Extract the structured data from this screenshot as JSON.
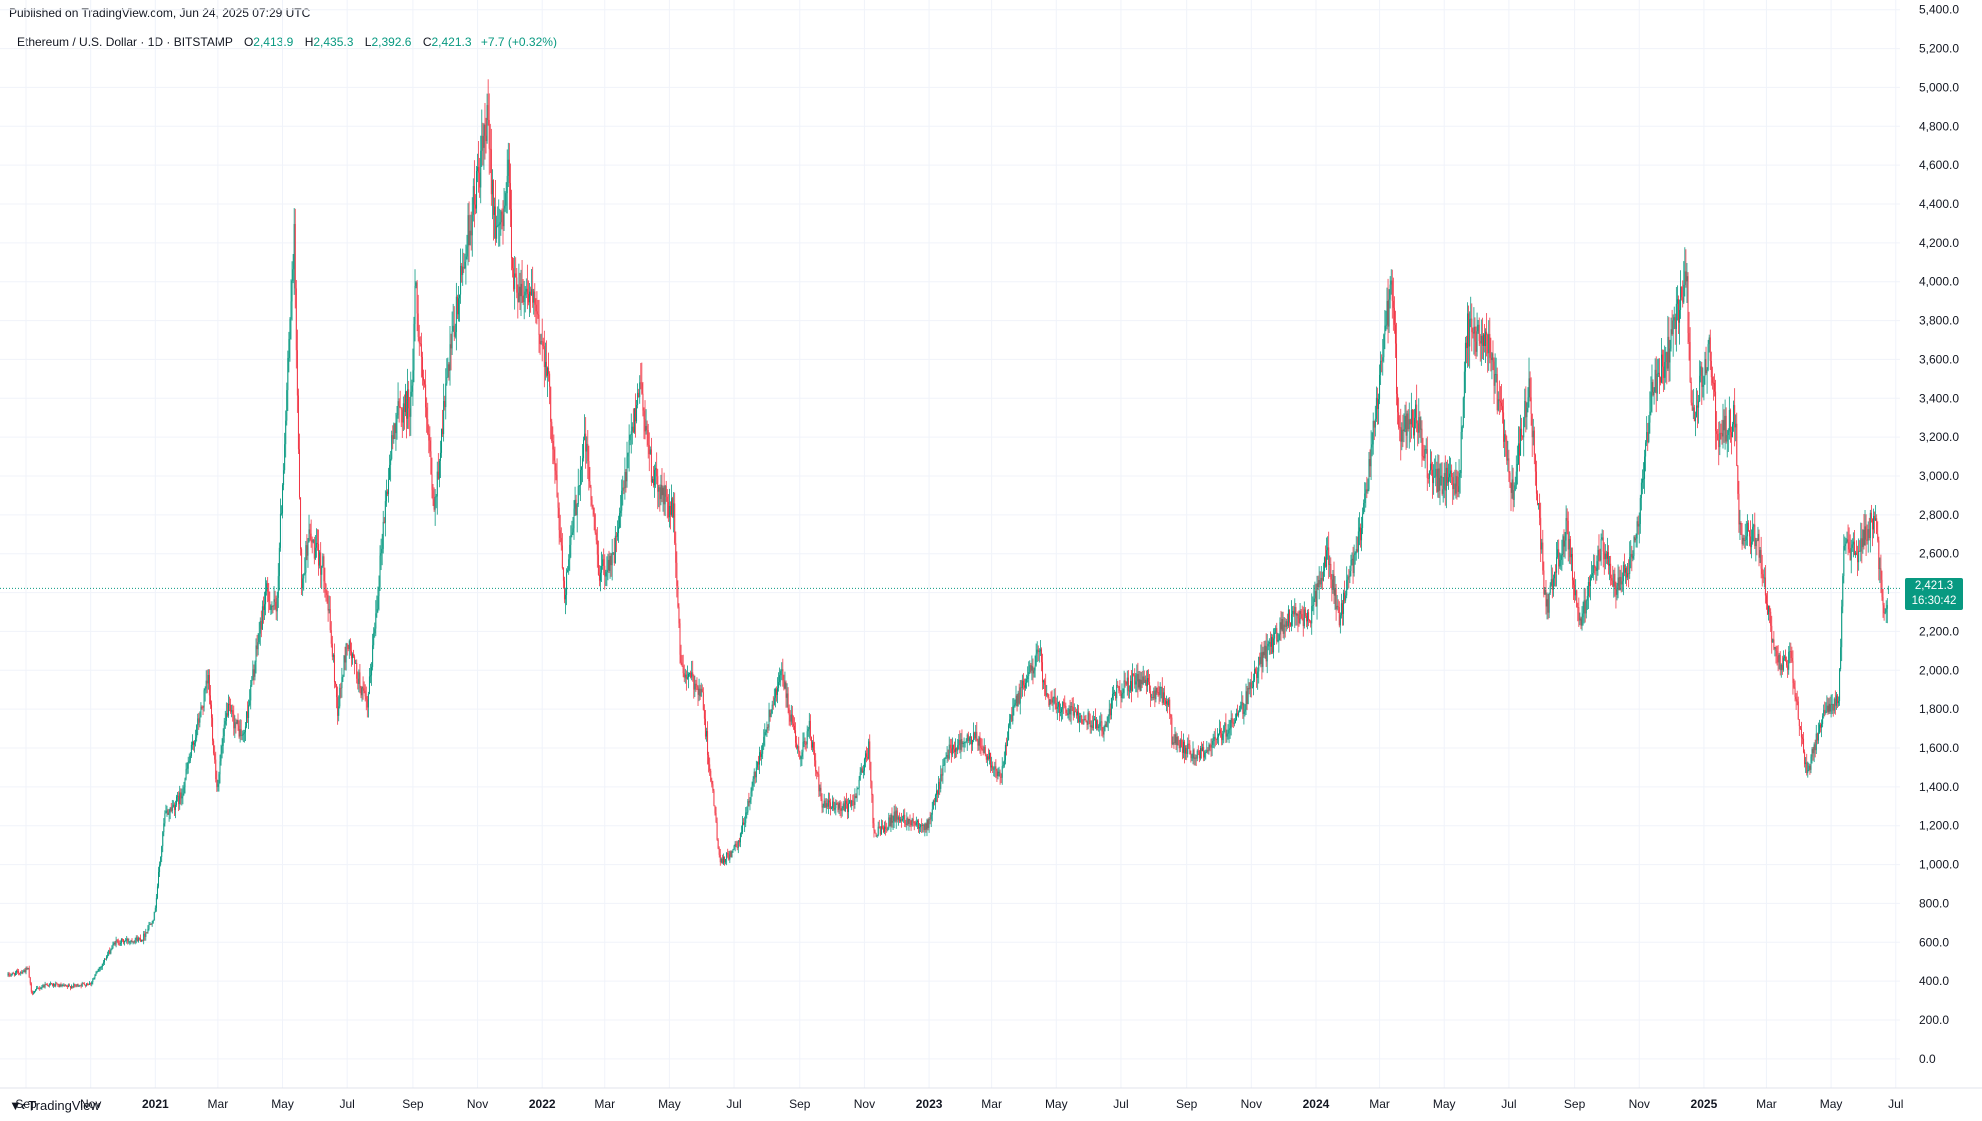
{
  "header": {
    "published": "Published on TradingView.com, Jun 24, 2025 07:29 UTC"
  },
  "legend": {
    "symbol": "Ethereum / U.S. Dollar · 1D · BITSTAMP",
    "o_label": "O",
    "o_value": "2,413.9",
    "h_label": "H",
    "h_value": "2,435.3",
    "l_label": "L",
    "l_value": "2,392.6",
    "c_label": "C",
    "c_value": "2,421.3",
    "change": "+7.7 (+0.32%)"
  },
  "price_tag": {
    "price": "2,421.3",
    "countdown": "16:30:42"
  },
  "footer": {
    "brand": "TradingView",
    "logo": "tradingview-logo-icon"
  },
  "colors": {
    "up": "#089981",
    "down": "#f23645",
    "grid": "#f0f3fa",
    "last_line": "#089981"
  },
  "chart_data": {
    "type": "candlestick",
    "symbol": "ETHUSD",
    "exchange": "BITSTAMP",
    "interval": "1D",
    "x_range": [
      "2020-08-15",
      "2025-07-05"
    ],
    "ylim": [
      -150,
      5450
    ],
    "y_ticks": [
      0,
      200,
      400,
      600,
      800,
      1000,
      1200,
      1400,
      1600,
      1800,
      2000,
      2200,
      2400,
      2600,
      2800,
      3000,
      3200,
      3400,
      3600,
      3800,
      4000,
      4200,
      4400,
      4600,
      4800,
      5000,
      5200,
      5400
    ],
    "y_tick_labels": [
      "0.0",
      "200.0",
      "400.0",
      "600.0",
      "800.0",
      "1,000.0",
      "1,200.0",
      "1,400.0",
      "1,600.0",
      "1,800.0",
      "2,000.0",
      "2,200.0",
      "2,400.0",
      "2,600.0",
      "2,800.0",
      "3,000.0",
      "3,200.0",
      "3,400.0",
      "3,600.0",
      "3,800.0",
      "4,000.0",
      "4,200.0",
      "4,400.0",
      "4,600.0",
      "4,800.0",
      "5,000.0",
      "5,200.0",
      "5,400.0"
    ],
    "x_ticks": [
      {
        "date": "2020-09-01",
        "label": "Sep"
      },
      {
        "date": "2020-11-01",
        "label": "Nov"
      },
      {
        "date": "2021-01-01",
        "label": "2021",
        "year": true
      },
      {
        "date": "2021-03-01",
        "label": "Mar"
      },
      {
        "date": "2021-05-01",
        "label": "May"
      },
      {
        "date": "2021-07-01",
        "label": "Jul"
      },
      {
        "date": "2021-09-01",
        "label": "Sep"
      },
      {
        "date": "2021-11-01",
        "label": "Nov"
      },
      {
        "date": "2022-01-01",
        "label": "2022",
        "year": true
      },
      {
        "date": "2022-03-01",
        "label": "Mar"
      },
      {
        "date": "2022-05-01",
        "label": "May"
      },
      {
        "date": "2022-07-01",
        "label": "Jul"
      },
      {
        "date": "2022-09-01",
        "label": "Sep"
      },
      {
        "date": "2022-11-01",
        "label": "Nov"
      },
      {
        "date": "2023-01-01",
        "label": "2023",
        "year": true
      },
      {
        "date": "2023-03-01",
        "label": "Mar"
      },
      {
        "date": "2023-05-01",
        "label": "May"
      },
      {
        "date": "2023-07-01",
        "label": "Jul"
      },
      {
        "date": "2023-09-01",
        "label": "Sep"
      },
      {
        "date": "2023-11-01",
        "label": "Nov"
      },
      {
        "date": "2024-01-01",
        "label": "2024",
        "year": true
      },
      {
        "date": "2024-03-01",
        "label": "Mar"
      },
      {
        "date": "2024-05-01",
        "label": "May"
      },
      {
        "date": "2024-07-01",
        "label": "Jul"
      },
      {
        "date": "2024-09-01",
        "label": "Sep"
      },
      {
        "date": "2024-11-01",
        "label": "Nov"
      },
      {
        "date": "2025-01-01",
        "label": "2025",
        "year": true
      },
      {
        "date": "2025-03-01",
        "label": "Mar"
      },
      {
        "date": "2025-05-01",
        "label": "May"
      },
      {
        "date": "2025-07-01",
        "label": "Jul"
      }
    ],
    "last_price": 2421.3,
    "grid": true,
    "price_path": [
      [
        "2020-08-15",
        430
      ],
      [
        "2020-09-03",
        460
      ],
      [
        "2020-09-06",
        340
      ],
      [
        "2020-09-20",
        385
      ],
      [
        "2020-10-10",
        370
      ],
      [
        "2020-11-01",
        390
      ],
      [
        "2020-11-24",
        600
      ],
      [
        "2020-12-20",
        620
      ],
      [
        "2020-12-31",
        740
      ],
      [
        "2021-01-10",
        1250
      ],
      [
        "2021-01-25",
        1350
      ],
      [
        "2021-02-20",
        1950
      ],
      [
        "2021-02-28",
        1400
      ],
      [
        "2021-03-10",
        1800
      ],
      [
        "2021-03-25",
        1650
      ],
      [
        "2021-04-15",
        2400
      ],
      [
        "2021-04-25",
        2300
      ],
      [
        "2021-05-12",
        4200
      ],
      [
        "2021-05-19",
        2400
      ],
      [
        "2021-05-25",
        2700
      ],
      [
        "2021-06-10",
        2500
      ],
      [
        "2021-06-22",
        1800
      ],
      [
        "2021-07-01",
        2150
      ],
      [
        "2021-07-20",
        1800
      ],
      [
        "2021-08-05",
        2800
      ],
      [
        "2021-08-15",
        3300
      ],
      [
        "2021-08-31",
        3400
      ],
      [
        "2021-09-03",
        4000
      ],
      [
        "2021-09-21",
        2800
      ],
      [
        "2021-10-01",
        3400
      ],
      [
        "2021-10-20",
        4150
      ],
      [
        "2021-11-10",
        4800
      ],
      [
        "2021-11-20",
        4200
      ],
      [
        "2021-12-01",
        4600
      ],
      [
        "2021-12-04",
        4000
      ],
      [
        "2021-12-20",
        3950
      ],
      [
        "2022-01-05",
        3600
      ],
      [
        "2022-01-22",
        2400
      ],
      [
        "2022-02-10",
        3200
      ],
      [
        "2022-02-24",
        2500
      ],
      [
        "2022-03-10",
        2600
      ],
      [
        "2022-04-03",
        3500
      ],
      [
        "2022-04-15",
        3000
      ],
      [
        "2022-05-05",
        2800
      ],
      [
        "2022-05-12",
        2000
      ],
      [
        "2022-05-31",
        1900
      ],
      [
        "2022-06-18",
        1000
      ],
      [
        "2022-07-05",
        1100
      ],
      [
        "2022-07-31",
        1700
      ],
      [
        "2022-08-14",
        2000
      ],
      [
        "2022-08-31",
        1550
      ],
      [
        "2022-09-10",
        1700
      ],
      [
        "2022-09-22",
        1300
      ],
      [
        "2022-10-20",
        1300
      ],
      [
        "2022-11-05",
        1600
      ],
      [
        "2022-11-10",
        1150
      ],
      [
        "2022-11-30",
        1250
      ],
      [
        "2022-12-31",
        1200
      ],
      [
        "2023-01-20",
        1600
      ],
      [
        "2023-02-15",
        1650
      ],
      [
        "2023-03-10",
        1450
      ],
      [
        "2023-03-20",
        1780
      ],
      [
        "2023-04-15",
        2100
      ],
      [
        "2023-04-21",
        1850
      ],
      [
        "2023-05-15",
        1800
      ],
      [
        "2023-06-15",
        1700
      ],
      [
        "2023-06-25",
        1880
      ],
      [
        "2023-07-15",
        1950
      ],
      [
        "2023-08-15",
        1850
      ],
      [
        "2023-08-18",
        1650
      ],
      [
        "2023-09-11",
        1560
      ],
      [
        "2023-10-01",
        1650
      ],
      [
        "2023-10-23",
        1800
      ],
      [
        "2023-11-10",
        2050
      ],
      [
        "2023-12-10",
        2300
      ],
      [
        "2023-12-25",
        2250
      ],
      [
        "2024-01-12",
        2600
      ],
      [
        "2024-01-23",
        2250
      ],
      [
        "2024-02-15",
        2800
      ],
      [
        "2024-03-12",
        4000
      ],
      [
        "2024-03-20",
        3200
      ],
      [
        "2024-04-05",
        3300
      ],
      [
        "2024-04-17",
        3000
      ],
      [
        "2024-05-15",
        2950
      ],
      [
        "2024-05-22",
        3750
      ],
      [
        "2024-06-10",
        3700
      ],
      [
        "2024-06-24",
        3300
      ],
      [
        "2024-07-05",
        2900
      ],
      [
        "2024-07-20",
        3500
      ],
      [
        "2024-08-05",
        2300
      ],
      [
        "2024-08-24",
        2750
      ],
      [
        "2024-09-06",
        2250
      ],
      [
        "2024-09-27",
        2650
      ],
      [
        "2024-10-10",
        2400
      ],
      [
        "2024-10-29",
        2650
      ],
      [
        "2024-11-12",
        3400
      ],
      [
        "2024-12-01",
        3700
      ],
      [
        "2024-12-16",
        4000
      ],
      [
        "2024-12-20",
        3300
      ],
      [
        "2025-01-06",
        3650
      ],
      [
        "2025-01-14",
        3200
      ],
      [
        "2025-01-31",
        3300
      ],
      [
        "2025-02-03",
        2700
      ],
      [
        "2025-02-20",
        2700
      ],
      [
        "2025-03-10",
        2050
      ],
      [
        "2025-03-24",
        2050
      ],
      [
        "2025-04-08",
        1450
      ],
      [
        "2025-04-22",
        1750
      ],
      [
        "2025-05-08",
        1850
      ],
      [
        "2025-05-13",
        2650
      ],
      [
        "2025-05-25",
        2600
      ],
      [
        "2025-06-11",
        2800
      ],
      [
        "2025-06-21",
        2250
      ],
      [
        "2025-06-24",
        2421
      ]
    ]
  }
}
